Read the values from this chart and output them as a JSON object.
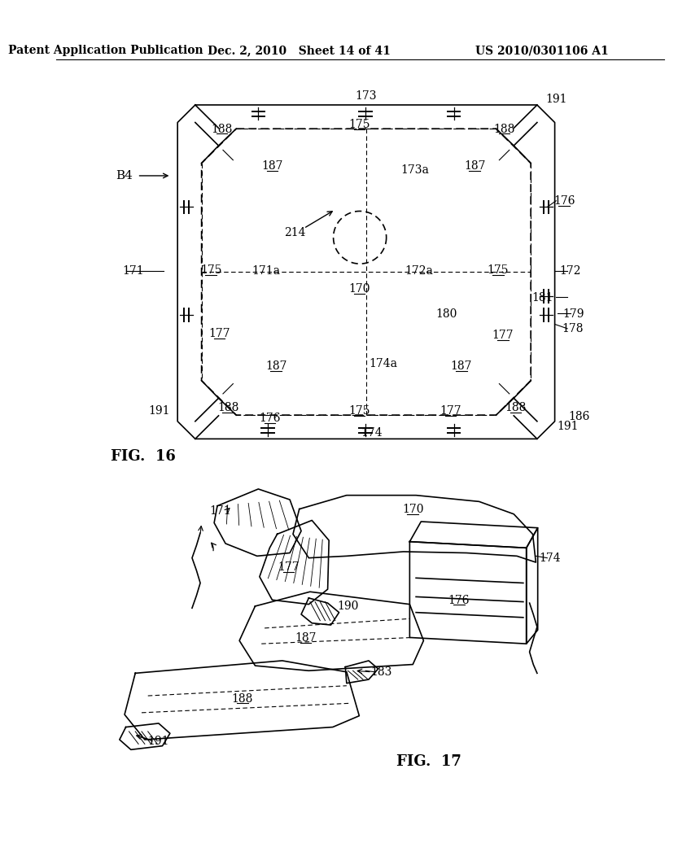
{
  "bg_color": "#ffffff",
  "line_color": "#000000",
  "header_left": "Patent Application Publication",
  "header_mid": "Dec. 2, 2010   Sheet 14 of 41",
  "header_right": "US 2010/0301106 A1",
  "fig16_label": "FIG.  16",
  "fig17_label": "FIG.  17",
  "font_size_header": 10,
  "font_size_ref": 10
}
